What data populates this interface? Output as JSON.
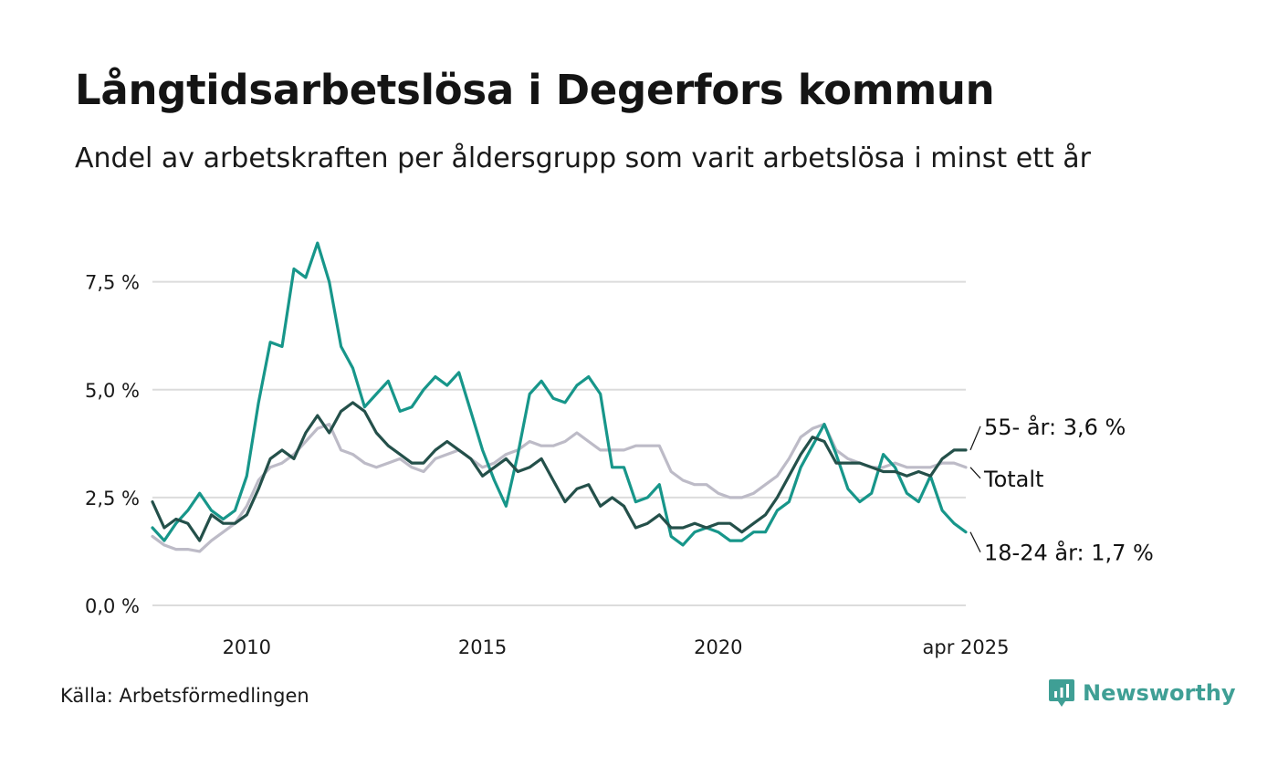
{
  "title": "Långtidsarbetslösa i Degerfors kommun",
  "subtitle": "Andel av arbetskraften per åldersgrupp som varit arbetslösa i minst ett år",
  "source": "Källa: Arbetsförmedlingen",
  "brand": {
    "name": "Newsworthy",
    "icon": "newsworthy-logo-icon",
    "color": "#3f9f95"
  },
  "chart_data": {
    "type": "line",
    "title": "Långtidsarbetslösa i Degerfors kommun",
    "subtitle": "Andel av arbetskraften per åldersgrupp som varit arbetslösa i minst ett år",
    "xlabel": "",
    "ylabel": "",
    "x_start": "2008-01",
    "x_end": "2025-04",
    "x_ticks": [
      {
        "value": 2010,
        "label": "2010"
      },
      {
        "value": 2015,
        "label": "2015"
      },
      {
        "value": 2020,
        "label": "2020"
      },
      {
        "value": 2025.25,
        "label": "apr 2025"
      }
    ],
    "y_ticks": [
      {
        "value": 0,
        "label": "0,0 %"
      },
      {
        "value": 2.5,
        "label": "2,5 %"
      },
      {
        "value": 5,
        "label": "5,0 %"
      },
      {
        "value": 7.5,
        "label": "7,5 %"
      }
    ],
    "ylim": [
      0,
      9.5
    ],
    "grid": true,
    "legend": "direct labels at right end of lines",
    "series": [
      {
        "name": "Totalt",
        "label": "Totalt",
        "color": "#bdbbc7",
        "points": [
          [
            2008.0,
            1.6
          ],
          [
            2008.25,
            1.4
          ],
          [
            2008.5,
            1.3
          ],
          [
            2008.75,
            1.3
          ],
          [
            2009.0,
            1.25
          ],
          [
            2009.25,
            1.5
          ],
          [
            2009.5,
            1.7
          ],
          [
            2009.75,
            1.9
          ],
          [
            2010.0,
            2.3
          ],
          [
            2010.25,
            2.9
          ],
          [
            2010.5,
            3.2
          ],
          [
            2010.75,
            3.3
          ],
          [
            2011.0,
            3.5
          ],
          [
            2011.25,
            3.8
          ],
          [
            2011.5,
            4.1
          ],
          [
            2011.75,
            4.2
          ],
          [
            2012.0,
            3.6
          ],
          [
            2012.25,
            3.5
          ],
          [
            2012.5,
            3.3
          ],
          [
            2012.75,
            3.2
          ],
          [
            2013.0,
            3.3
          ],
          [
            2013.25,
            3.4
          ],
          [
            2013.5,
            3.2
          ],
          [
            2013.75,
            3.1
          ],
          [
            2014.0,
            3.4
          ],
          [
            2014.25,
            3.5
          ],
          [
            2014.5,
            3.6
          ],
          [
            2014.75,
            3.4
          ],
          [
            2015.0,
            3.2
          ],
          [
            2015.25,
            3.3
          ],
          [
            2015.5,
            3.5
          ],
          [
            2015.75,
            3.6
          ],
          [
            2016.0,
            3.8
          ],
          [
            2016.25,
            3.7
          ],
          [
            2016.5,
            3.7
          ],
          [
            2016.75,
            3.8
          ],
          [
            2017.0,
            4.0
          ],
          [
            2017.25,
            3.8
          ],
          [
            2017.5,
            3.6
          ],
          [
            2017.75,
            3.6
          ],
          [
            2018.0,
            3.6
          ],
          [
            2018.25,
            3.7
          ],
          [
            2018.5,
            3.7
          ],
          [
            2018.75,
            3.7
          ],
          [
            2019.0,
            3.1
          ],
          [
            2019.25,
            2.9
          ],
          [
            2019.5,
            2.8
          ],
          [
            2019.75,
            2.8
          ],
          [
            2020.0,
            2.6
          ],
          [
            2020.25,
            2.5
          ],
          [
            2020.5,
            2.5
          ],
          [
            2020.75,
            2.6
          ],
          [
            2021.0,
            2.8
          ],
          [
            2021.25,
            3.0
          ],
          [
            2021.5,
            3.4
          ],
          [
            2021.75,
            3.9
          ],
          [
            2022.0,
            4.1
          ],
          [
            2022.25,
            4.2
          ],
          [
            2022.5,
            3.6
          ],
          [
            2022.75,
            3.4
          ],
          [
            2023.0,
            3.3
          ],
          [
            2023.25,
            3.2
          ],
          [
            2023.5,
            3.2
          ],
          [
            2023.75,
            3.3
          ],
          [
            2024.0,
            3.2
          ],
          [
            2024.25,
            3.2
          ],
          [
            2024.5,
            3.2
          ],
          [
            2024.75,
            3.3
          ],
          [
            2025.0,
            3.3
          ],
          [
            2025.25,
            3.2
          ]
        ]
      },
      {
        "name": "18-24 år",
        "label": "18-24 år: 1,7 %",
        "color": "#17968a",
        "points": [
          [
            2008.0,
            1.8
          ],
          [
            2008.25,
            1.5
          ],
          [
            2008.5,
            1.9
          ],
          [
            2008.75,
            2.2
          ],
          [
            2009.0,
            2.6
          ],
          [
            2009.25,
            2.2
          ],
          [
            2009.5,
            2.0
          ],
          [
            2009.75,
            2.2
          ],
          [
            2010.0,
            3.0
          ],
          [
            2010.25,
            4.7
          ],
          [
            2010.5,
            6.1
          ],
          [
            2010.75,
            6.0
          ],
          [
            2011.0,
            7.8
          ],
          [
            2011.25,
            7.6
          ],
          [
            2011.5,
            8.4
          ],
          [
            2011.75,
            7.5
          ],
          [
            2012.0,
            6.0
          ],
          [
            2012.25,
            5.5
          ],
          [
            2012.5,
            4.6
          ],
          [
            2012.75,
            4.9
          ],
          [
            2013.0,
            5.2
          ],
          [
            2013.25,
            4.5
          ],
          [
            2013.5,
            4.6
          ],
          [
            2013.75,
            5.0
          ],
          [
            2014.0,
            5.3
          ],
          [
            2014.25,
            5.1
          ],
          [
            2014.5,
            5.4
          ],
          [
            2014.75,
            4.5
          ],
          [
            2015.0,
            3.6
          ],
          [
            2015.25,
            2.9
          ],
          [
            2015.5,
            2.3
          ],
          [
            2015.75,
            3.5
          ],
          [
            2016.0,
            4.9
          ],
          [
            2016.25,
            5.2
          ],
          [
            2016.5,
            4.8
          ],
          [
            2016.75,
            4.7
          ],
          [
            2017.0,
            5.1
          ],
          [
            2017.25,
            5.3
          ],
          [
            2017.5,
            4.9
          ],
          [
            2017.75,
            3.2
          ],
          [
            2018.0,
            3.2
          ],
          [
            2018.25,
            2.4
          ],
          [
            2018.5,
            2.5
          ],
          [
            2018.75,
            2.8
          ],
          [
            2019.0,
            1.6
          ],
          [
            2019.25,
            1.4
          ],
          [
            2019.5,
            1.7
          ],
          [
            2019.75,
            1.8
          ],
          [
            2020.0,
            1.7
          ],
          [
            2020.25,
            1.5
          ],
          [
            2020.5,
            1.5
          ],
          [
            2020.75,
            1.7
          ],
          [
            2021.0,
            1.7
          ],
          [
            2021.25,
            2.2
          ],
          [
            2021.5,
            2.4
          ],
          [
            2021.75,
            3.2
          ],
          [
            2022.0,
            3.7
          ],
          [
            2022.25,
            4.2
          ],
          [
            2022.5,
            3.5
          ],
          [
            2022.75,
            2.7
          ],
          [
            2023.0,
            2.4
          ],
          [
            2023.25,
            2.6
          ],
          [
            2023.5,
            3.5
          ],
          [
            2023.75,
            3.2
          ],
          [
            2024.0,
            2.6
          ],
          [
            2024.25,
            2.4
          ],
          [
            2024.5,
            3.0
          ],
          [
            2024.75,
            2.2
          ],
          [
            2025.0,
            1.9
          ],
          [
            2025.25,
            1.7
          ]
        ]
      },
      {
        "name": "55- år",
        "label": "55- år: 3,6 %",
        "color": "#24504a",
        "points": [
          [
            2008.0,
            2.4
          ],
          [
            2008.25,
            1.8
          ],
          [
            2008.5,
            2.0
          ],
          [
            2008.75,
            1.9
          ],
          [
            2009.0,
            1.5
          ],
          [
            2009.25,
            2.1
          ],
          [
            2009.5,
            1.9
          ],
          [
            2009.75,
            1.9
          ],
          [
            2010.0,
            2.1
          ],
          [
            2010.25,
            2.7
          ],
          [
            2010.5,
            3.4
          ],
          [
            2010.75,
            3.6
          ],
          [
            2011.0,
            3.4
          ],
          [
            2011.25,
            4.0
          ],
          [
            2011.5,
            4.4
          ],
          [
            2011.75,
            4.0
          ],
          [
            2012.0,
            4.5
          ],
          [
            2012.25,
            4.7
          ],
          [
            2012.5,
            4.5
          ],
          [
            2012.75,
            4.0
          ],
          [
            2013.0,
            3.7
          ],
          [
            2013.25,
            3.5
          ],
          [
            2013.5,
            3.3
          ],
          [
            2013.75,
            3.3
          ],
          [
            2014.0,
            3.6
          ],
          [
            2014.25,
            3.8
          ],
          [
            2014.5,
            3.6
          ],
          [
            2014.75,
            3.4
          ],
          [
            2015.0,
            3.0
          ],
          [
            2015.25,
            3.2
          ],
          [
            2015.5,
            3.4
          ],
          [
            2015.75,
            3.1
          ],
          [
            2016.0,
            3.2
          ],
          [
            2016.25,
            3.4
          ],
          [
            2016.5,
            2.9
          ],
          [
            2016.75,
            2.4
          ],
          [
            2017.0,
            2.7
          ],
          [
            2017.25,
            2.8
          ],
          [
            2017.5,
            2.3
          ],
          [
            2017.75,
            2.5
          ],
          [
            2018.0,
            2.3
          ],
          [
            2018.25,
            1.8
          ],
          [
            2018.5,
            1.9
          ],
          [
            2018.75,
            2.1
          ],
          [
            2019.0,
            1.8
          ],
          [
            2019.25,
            1.8
          ],
          [
            2019.5,
            1.9
          ],
          [
            2019.75,
            1.8
          ],
          [
            2020.0,
            1.9
          ],
          [
            2020.25,
            1.9
          ],
          [
            2020.5,
            1.7
          ],
          [
            2020.75,
            1.9
          ],
          [
            2021.0,
            2.1
          ],
          [
            2021.25,
            2.5
          ],
          [
            2021.5,
            3.0
          ],
          [
            2021.75,
            3.5
          ],
          [
            2022.0,
            3.9
          ],
          [
            2022.25,
            3.8
          ],
          [
            2022.5,
            3.3
          ],
          [
            2022.75,
            3.3
          ],
          [
            2023.0,
            3.3
          ],
          [
            2023.25,
            3.2
          ],
          [
            2023.5,
            3.1
          ],
          [
            2023.75,
            3.1
          ],
          [
            2024.0,
            3.0
          ],
          [
            2024.25,
            3.1
          ],
          [
            2024.5,
            3.0
          ],
          [
            2024.75,
            3.4
          ],
          [
            2025.0,
            3.6
          ],
          [
            2025.25,
            3.6
          ]
        ]
      }
    ]
  }
}
